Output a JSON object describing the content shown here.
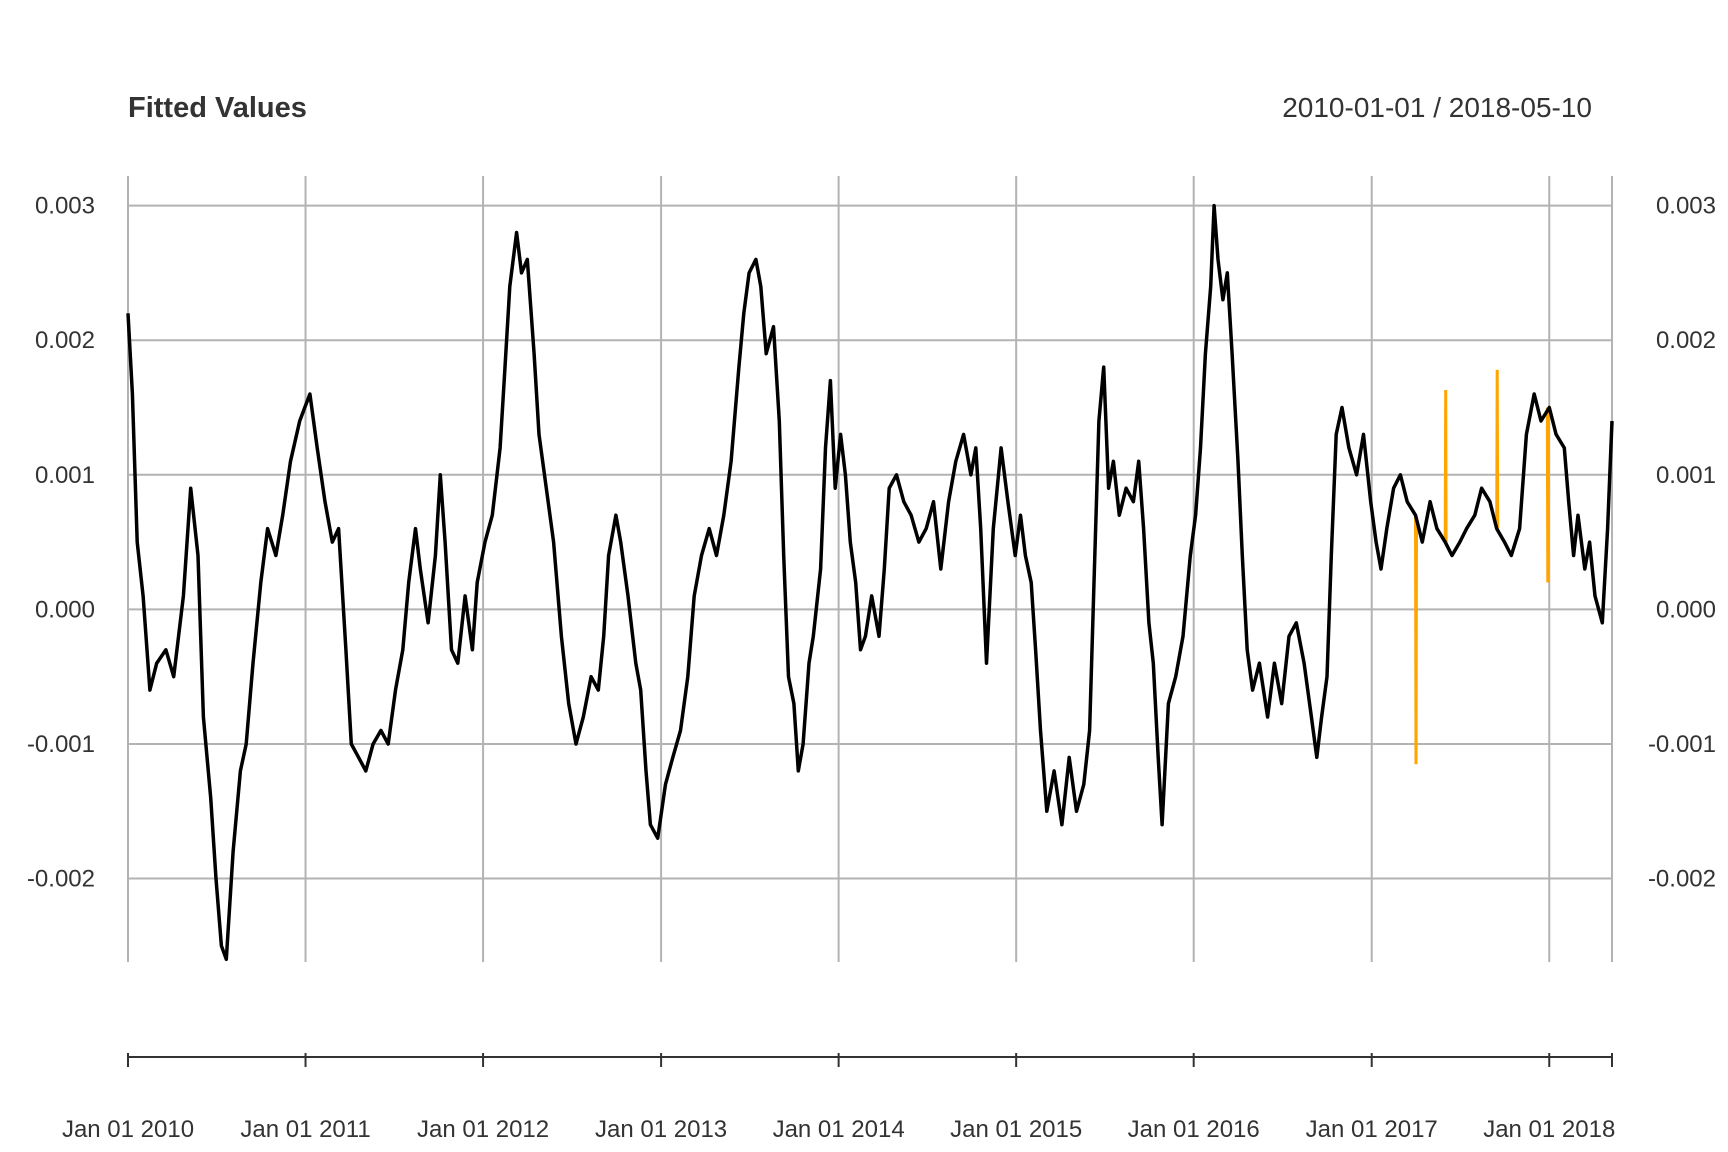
{
  "chart_data": {
    "type": "line",
    "title": "Fitted Values",
    "date_range_label": "2010-01-01 / 2018-05-10",
    "x_range": [
      "2010-01-01",
      "2018-05-10"
    ],
    "ylim": [
      -0.00262,
      0.00322
    ],
    "y_ticks": [
      {
        "value": 0.003,
        "label": "0.003"
      },
      {
        "value": 0.002,
        "label": "0.002"
      },
      {
        "value": 0.001,
        "label": "0.001"
      },
      {
        "value": 0.0,
        "label": "0.000"
      },
      {
        "value": -0.001,
        "label": "-0.001"
      },
      {
        "value": -0.002,
        "label": "-0.002"
      }
    ],
    "x_ticks": [
      {
        "date": "2010-01-01",
        "label": "Jan 01 2010"
      },
      {
        "date": "2011-01-01",
        "label": "Jan 01 2011"
      },
      {
        "date": "2012-01-01",
        "label": "Jan 01 2012"
      },
      {
        "date": "2013-01-01",
        "label": "Jan 01 2013"
      },
      {
        "date": "2014-01-01",
        "label": "Jan 01 2014"
      },
      {
        "date": "2015-01-01",
        "label": "Jan 01 2015"
      },
      {
        "date": "2016-01-01",
        "label": "Jan 01 2016"
      },
      {
        "date": "2017-01-01",
        "label": "Jan 01 2017"
      },
      {
        "date": "2018-01-01",
        "label": "Jan 01 2018"
      }
    ],
    "grid": true,
    "series": [
      {
        "color": "#000000",
        "points": [
          [
            "2010-01-01",
            0.0022
          ],
          [
            "2010-01-10",
            0.0016
          ],
          [
            "2010-01-20",
            0.0005
          ],
          [
            "2010-02-01",
            0.0001
          ],
          [
            "2010-02-15",
            -0.0006
          ],
          [
            "2010-03-01",
            -0.0004
          ],
          [
            "2010-03-20",
            -0.0003
          ],
          [
            "2010-04-05",
            -0.0005
          ],
          [
            "2010-04-25",
            0.0001
          ],
          [
            "2010-05-10",
            0.0009
          ],
          [
            "2010-05-25",
            0.0004
          ],
          [
            "2010-06-05",
            -0.0008
          ],
          [
            "2010-06-20",
            -0.0014
          ],
          [
            "2010-07-01",
            -0.002
          ],
          [
            "2010-07-12",
            -0.0025
          ],
          [
            "2010-07-22",
            -0.0026
          ],
          [
            "2010-08-05",
            -0.0018
          ],
          [
            "2010-08-20",
            -0.0012
          ],
          [
            "2010-09-01",
            -0.001
          ],
          [
            "2010-09-15",
            -0.0004
          ],
          [
            "2010-10-01",
            0.0002
          ],
          [
            "2010-10-15",
            0.0006
          ],
          [
            "2010-11-01",
            0.0004
          ],
          [
            "2010-11-15",
            0.0007
          ],
          [
            "2010-12-01",
            0.0011
          ],
          [
            "2010-12-20",
            0.0014
          ],
          [
            "2011-01-10",
            0.0016
          ],
          [
            "2011-01-25",
            0.0012
          ],
          [
            "2011-02-10",
            0.0008
          ],
          [
            "2011-02-25",
            0.0005
          ],
          [
            "2011-03-10",
            0.0006
          ],
          [
            "2011-03-25",
            -0.0003
          ],
          [
            "2011-04-05",
            -0.001
          ],
          [
            "2011-04-20",
            -0.0011
          ],
          [
            "2011-05-05",
            -0.0012
          ],
          [
            "2011-05-20",
            -0.001
          ],
          [
            "2011-06-05",
            -0.0009
          ],
          [
            "2011-06-20",
            -0.001
          ],
          [
            "2011-07-05",
            -0.0006
          ],
          [
            "2011-07-20",
            -0.0003
          ],
          [
            "2011-08-01",
            0.0002
          ],
          [
            "2011-08-15",
            0.0006
          ],
          [
            "2011-08-25",
            0.0003
          ],
          [
            "2011-09-10",
            -0.0001
          ],
          [
            "2011-09-25",
            0.0004
          ],
          [
            "2011-10-05",
            0.001
          ],
          [
            "2011-10-15",
            0.0005
          ],
          [
            "2011-10-28",
            -0.0003
          ],
          [
            "2011-11-10",
            -0.0004
          ],
          [
            "2011-11-25",
            0.0001
          ],
          [
            "2011-12-10",
            -0.0003
          ],
          [
            "2011-12-20",
            0.0002
          ],
          [
            "2012-01-05",
            0.0005
          ],
          [
            "2012-01-20",
            0.0007
          ],
          [
            "2012-02-05",
            0.0012
          ],
          [
            "2012-02-15",
            0.0018
          ],
          [
            "2012-02-25",
            0.0024
          ],
          [
            "2012-03-10",
            0.0028
          ],
          [
            "2012-03-20",
            0.0025
          ],
          [
            "2012-04-01",
            0.0026
          ],
          [
            "2012-04-15",
            0.0019
          ],
          [
            "2012-04-25",
            0.0013
          ],
          [
            "2012-05-10",
            0.0009
          ],
          [
            "2012-05-25",
            0.0005
          ],
          [
            "2012-06-10",
            -0.0002
          ],
          [
            "2012-06-25",
            -0.0007
          ],
          [
            "2012-07-10",
            -0.001
          ],
          [
            "2012-07-25",
            -0.0008
          ],
          [
            "2012-08-10",
            -0.0005
          ],
          [
            "2012-08-25",
            -0.0006
          ],
          [
            "2012-09-05",
            -0.0002
          ],
          [
            "2012-09-15",
            0.0004
          ],
          [
            "2012-09-30",
            0.0007
          ],
          [
            "2012-10-10",
            0.0005
          ],
          [
            "2012-10-25",
            0.0001
          ],
          [
            "2012-11-10",
            -0.0004
          ],
          [
            "2012-11-20",
            -0.0006
          ],
          [
            "2012-12-01",
            -0.0012
          ],
          [
            "2012-12-10",
            -0.0016
          ],
          [
            "2012-12-25",
            -0.0017
          ],
          [
            "2013-01-10",
            -0.0013
          ],
          [
            "2013-01-25",
            -0.0011
          ],
          [
            "2013-02-10",
            -0.0009
          ],
          [
            "2013-02-25",
            -0.0005
          ],
          [
            "2013-03-10",
            0.0001
          ],
          [
            "2013-03-25",
            0.0004
          ],
          [
            "2013-04-10",
            0.0006
          ],
          [
            "2013-04-25",
            0.0004
          ],
          [
            "2013-05-10",
            0.0007
          ],
          [
            "2013-05-25",
            0.0011
          ],
          [
            "2013-06-10",
            0.0018
          ],
          [
            "2013-06-20",
            0.0022
          ],
          [
            "2013-07-01",
            0.0025
          ],
          [
            "2013-07-15",
            0.0026
          ],
          [
            "2013-07-25",
            0.0024
          ],
          [
            "2013-08-05",
            0.0019
          ],
          [
            "2013-08-20",
            0.0021
          ],
          [
            "2013-09-01",
            0.0014
          ],
          [
            "2013-09-10",
            0.0004
          ],
          [
            "2013-09-20",
            -0.0005
          ],
          [
            "2013-10-01",
            -0.0007
          ],
          [
            "2013-10-10",
            -0.0012
          ],
          [
            "2013-10-20",
            -0.001
          ],
          [
            "2013-11-01",
            -0.0004
          ],
          [
            "2013-11-10",
            -0.0002
          ],
          [
            "2013-11-25",
            0.0003
          ],
          [
            "2013-12-05",
            0.0012
          ],
          [
            "2013-12-15",
            0.0017
          ],
          [
            "2013-12-25",
            0.0009
          ],
          [
            "2014-01-05",
            0.0013
          ],
          [
            "2014-01-15",
            0.001
          ],
          [
            "2014-01-25",
            0.0005
          ],
          [
            "2014-02-05",
            0.0002
          ],
          [
            "2014-02-15",
            -0.0003
          ],
          [
            "2014-02-25",
            -0.0002
          ],
          [
            "2014-03-10",
            0.0001
          ],
          [
            "2014-03-25",
            -0.0002
          ],
          [
            "2014-04-05",
            0.0003
          ],
          [
            "2014-04-15",
            0.0009
          ],
          [
            "2014-04-30",
            0.001
          ],
          [
            "2014-05-15",
            0.0008
          ],
          [
            "2014-05-30",
            0.0007
          ],
          [
            "2014-06-15",
            0.0005
          ],
          [
            "2014-06-30",
            0.0006
          ],
          [
            "2014-07-15",
            0.0008
          ],
          [
            "2014-07-30",
            0.0003
          ],
          [
            "2014-08-15",
            0.0008
          ],
          [
            "2014-08-30",
            0.0011
          ],
          [
            "2014-09-15",
            0.0013
          ],
          [
            "2014-09-30",
            0.001
          ],
          [
            "2014-10-10",
            0.0012
          ],
          [
            "2014-10-20",
            0.0006
          ],
          [
            "2014-11-01",
            -0.0004
          ],
          [
            "2014-11-15",
            0.0006
          ],
          [
            "2014-12-01",
            0.0012
          ],
          [
            "2014-12-15",
            0.0008
          ],
          [
            "2014-12-30",
            0.0004
          ],
          [
            "2015-01-10",
            0.0007
          ],
          [
            "2015-01-20",
            0.0004
          ],
          [
            "2015-02-01",
            0.0002
          ],
          [
            "2015-02-10",
            -0.0003
          ],
          [
            "2015-02-20",
            -0.0009
          ],
          [
            "2015-03-05",
            -0.0015
          ],
          [
            "2015-03-20",
            -0.0012
          ],
          [
            "2015-04-05",
            -0.0016
          ],
          [
            "2015-04-20",
            -0.0011
          ],
          [
            "2015-05-05",
            -0.0015
          ],
          [
            "2015-05-20",
            -0.0013
          ],
          [
            "2015-06-01",
            -0.0009
          ],
          [
            "2015-06-10",
            0.0002
          ],
          [
            "2015-06-20",
            0.0014
          ],
          [
            "2015-06-30",
            0.0018
          ],
          [
            "2015-07-10",
            0.0009
          ],
          [
            "2015-07-20",
            0.0011
          ],
          [
            "2015-08-01",
            0.0007
          ],
          [
            "2015-08-15",
            0.0009
          ],
          [
            "2015-08-30",
            0.0008
          ],
          [
            "2015-09-10",
            0.0011
          ],
          [
            "2015-09-20",
            0.0006
          ],
          [
            "2015-10-01",
            -0.0001
          ],
          [
            "2015-10-10",
            -0.0004
          ],
          [
            "2015-10-20",
            -0.0011
          ],
          [
            "2015-10-28",
            -0.0016
          ],
          [
            "2015-11-10",
            -0.0007
          ],
          [
            "2015-11-25",
            -0.0005
          ],
          [
            "2015-12-10",
            -0.0002
          ],
          [
            "2015-12-25",
            0.0004
          ],
          [
            "2016-01-05",
            0.0007
          ],
          [
            "2016-01-15",
            0.0012
          ],
          [
            "2016-01-25",
            0.0019
          ],
          [
            "2016-02-05",
            0.0024
          ],
          [
            "2016-02-12",
            0.003
          ],
          [
            "2016-02-20",
            0.0026
          ],
          [
            "2016-03-01",
            0.0023
          ],
          [
            "2016-03-10",
            0.0025
          ],
          [
            "2016-03-20",
            0.0019
          ],
          [
            "2016-04-01",
            0.0011
          ],
          [
            "2016-04-10",
            0.0004
          ],
          [
            "2016-04-20",
            -0.0003
          ],
          [
            "2016-05-01",
            -0.0006
          ],
          [
            "2016-05-15",
            -0.0004
          ],
          [
            "2016-06-01",
            -0.0008
          ],
          [
            "2016-06-15",
            -0.0004
          ],
          [
            "2016-06-30",
            -0.0007
          ],
          [
            "2016-07-15",
            -0.0002
          ],
          [
            "2016-07-30",
            -0.0001
          ],
          [
            "2016-08-15",
            -0.0004
          ],
          [
            "2016-08-30",
            -0.0008
          ],
          [
            "2016-09-10",
            -0.0011
          ],
          [
            "2016-09-20",
            -0.0008
          ],
          [
            "2016-10-01",
            -0.0005
          ],
          [
            "2016-10-10",
            0.0004
          ],
          [
            "2016-10-20",
            0.0013
          ],
          [
            "2016-11-01",
            0.0015
          ],
          [
            "2016-11-15",
            0.0012
          ],
          [
            "2016-12-01",
            0.001
          ],
          [
            "2016-12-15",
            0.0013
          ],
          [
            "2016-12-30",
            0.0008
          ],
          [
            "2017-01-10",
            0.0005
          ],
          [
            "2017-01-20",
            0.0003
          ],
          [
            "2017-02-01",
            0.0006
          ],
          [
            "2017-02-15",
            0.0009
          ],
          [
            "2017-03-01",
            0.001
          ],
          [
            "2017-03-15",
            0.0008
          ],
          [
            "2017-04-01",
            0.0007
          ],
          [
            "2017-04-15",
            0.0005
          ],
          [
            "2017-05-01",
            0.0008
          ],
          [
            "2017-05-15",
            0.0006
          ],
          [
            "2017-06-01",
            0.0005
          ],
          [
            "2017-06-15",
            0.0004
          ],
          [
            "2017-07-01",
            0.0005
          ],
          [
            "2017-07-15",
            0.0006
          ],
          [
            "2017-08-01",
            0.0007
          ],
          [
            "2017-08-15",
            0.0009
          ],
          [
            "2017-09-01",
            0.0008
          ],
          [
            "2017-09-15",
            0.0006
          ],
          [
            "2017-10-01",
            0.0005
          ],
          [
            "2017-10-15",
            0.0004
          ],
          [
            "2017-11-01",
            0.0006
          ],
          [
            "2017-11-15",
            0.0013
          ],
          [
            "2017-12-01",
            0.0016
          ],
          [
            "2017-12-15",
            0.0014
          ],
          [
            "2018-01-01",
            0.0015
          ],
          [
            "2018-01-15",
            0.0013
          ],
          [
            "2018-02-01",
            0.0012
          ],
          [
            "2018-02-10",
            0.0008
          ],
          [
            "2018-02-20",
            0.0004
          ],
          [
            "2018-03-01",
            0.0007
          ],
          [
            "2018-03-15",
            0.0003
          ],
          [
            "2018-03-25",
            0.0005
          ],
          [
            "2018-04-05",
            0.0001
          ],
          [
            "2018-04-20",
            -0.0001
          ],
          [
            "2018-05-01",
            0.0006
          ],
          [
            "2018-05-10",
            0.0014
          ]
        ]
      },
      {
        "color": "#FFA500",
        "points": [
          [
            "2017-04-01",
            0.0007
          ],
          [
            "2017-04-02",
            -0.00115
          ],
          [
            "2017-04-03",
            0.0006
          ],
          [
            "2017-06-01",
            0.0005
          ],
          [
            "2017-06-02",
            0.00163
          ],
          [
            "2017-06-03",
            0.0005
          ],
          [
            "2017-09-15",
            0.0006
          ],
          [
            "2017-09-16",
            0.00178
          ],
          [
            "2017-09-17",
            0.0006
          ],
          [
            "2017-12-28",
            0.0015
          ],
          [
            "2017-12-29",
            0.0002
          ],
          [
            "2017-12-30",
            0.0015
          ]
        ]
      }
    ]
  }
}
